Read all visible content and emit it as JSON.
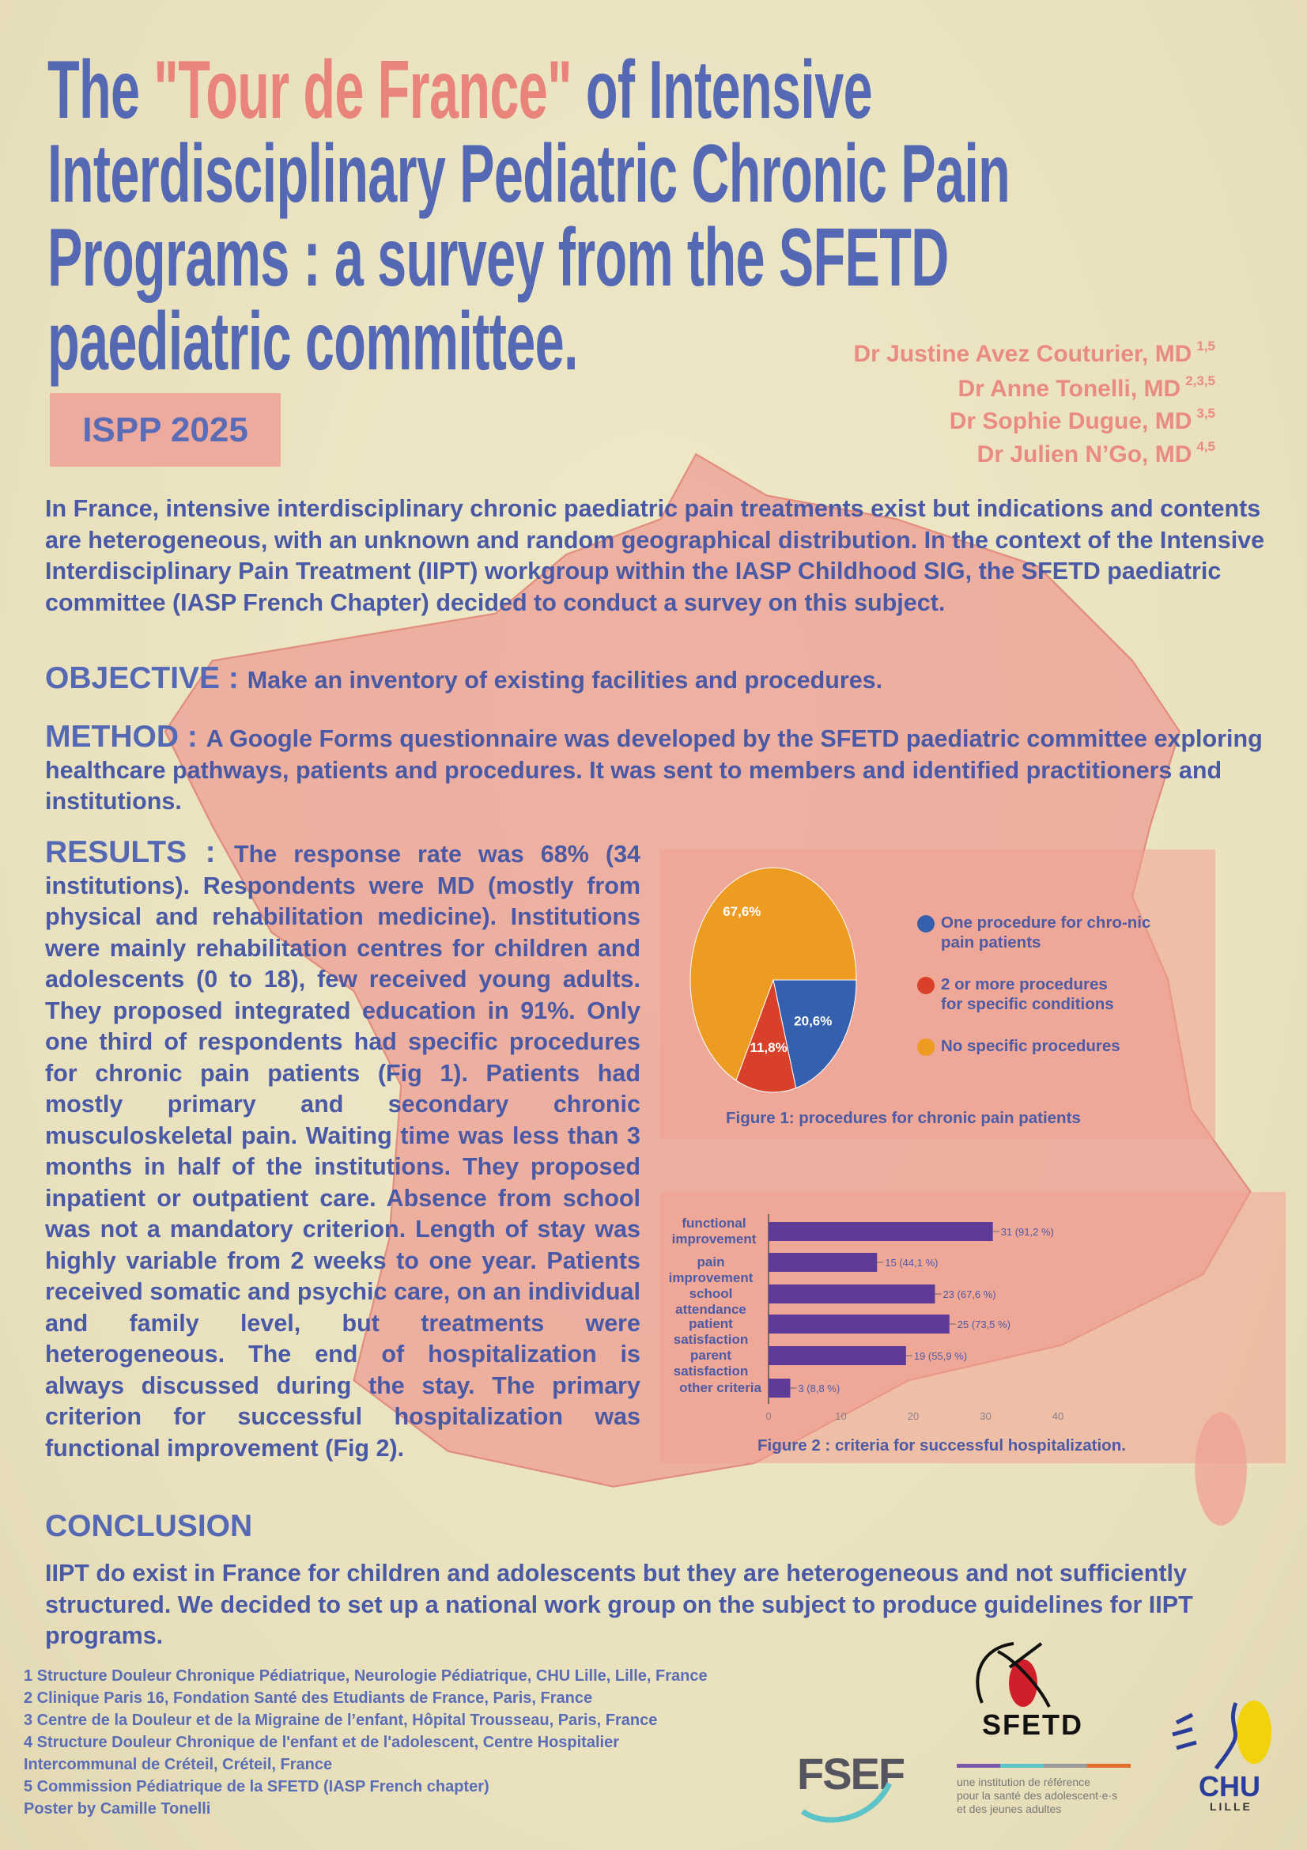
{
  "colors": {
    "title_blue": "#5468b4",
    "title_salmon": "#e9847a",
    "map_pink": "#eea79a",
    "pie_orange": "#ee9b22",
    "pie_blue": "#3560ad",
    "pie_red": "#d8402a",
    "bar_purple": "#5e3b96"
  },
  "title": {
    "line1_a": "The ",
    "line1_b": "\"Tour de France\"",
    "line1_c": " of Intensive",
    "line2": "Interdisciplinary Pediatric Chronic Pain",
    "line3": "Programs : a survey from the SFETD",
    "line4": "paediatric committee."
  },
  "badge": "ISPP 2025",
  "authors": [
    {
      "name": "Dr Justine Avez Couturier, MD",
      "aff": "1,5"
    },
    {
      "name": "Dr Anne Tonelli, MD",
      "aff": "2,3,5"
    },
    {
      "name": "Dr Sophie Dugue, MD",
      "aff": "3,5"
    },
    {
      "name": "Dr Julien N’Go, MD",
      "aff": "4,5"
    }
  ],
  "intro": "In France, intensive interdisciplinary chronic paediatric pain treatments exist but indications and contents are heterogeneous, with an unknown and random geographical distribution. In the context of the Intensive Interdisciplinary Pain Treatment (IIPT) workgroup within the IASP Childhood SIG, the SFETD paediatric committee (IASP French Chapter) decided to conduct a survey on this subject.",
  "objective": {
    "heading": "OBJECTIVE : ",
    "text": "Make an inventory of existing facilities and procedures."
  },
  "method": {
    "heading": "METHOD : ",
    "text": "A Google Forms questionnaire was developed by the SFETD paediatric committee exploring healthcare pathways, patients and procedures. It was sent to members and identified practitioners and institutions."
  },
  "results": {
    "heading": "RESULTS : ",
    "text": "The response rate was 68% (34 institutions). Respondents were MD (mostly from physical and rehabilitation medicine). Institutions were mainly rehabilitation centres for children and adolescents (0 to 18), few received young adults. They proposed integrated education in 91%. Only one third of respondents had specific procedures for chronic pain patients (Fig 1). Patients had mostly primary and secondary chronic musculoskeletal pain. Waiting time was less than 3 months in half of the institutions. They proposed inpatient or outpatient care. Absence from school was not a mandatory criterion. Length of stay was highly variable from 2 weeks to one year. Patients received somatic and psychic care, on an individual and family level, but treatments were heterogeneous. The end of hospitalization is always discussed during the stay. The primary criterion for successful hospitalization was functional improvement (Fig 2)."
  },
  "conclusion": {
    "heading": "CONCLUSION",
    "text": "IIPT do exist in France for children and adolescents but they are heterogeneous and not sufficiently structured. We decided to set up a national work group on the subject to produce guidelines for IIPT programs."
  },
  "chart_data": [
    {
      "type": "pie",
      "title": "Figure 1: procedures for chronic pain patients",
      "slices": [
        {
          "label": "One procedure for chronic pain patients",
          "legend_text": "One procedure for chro-nic pain patients",
          "value": 20.6,
          "value_label": "20,6%",
          "color": "#3560ad"
        },
        {
          "label": "2 or more procedures for specific conditions",
          "legend_text": "2 or more procedures for specific conditions",
          "value": 11.8,
          "value_label": "11,8%",
          "color": "#d8402a"
        },
        {
          "label": "No specific procedures",
          "legend_text": "No specific procedures",
          "value": 67.6,
          "value_label": "67,6%",
          "color": "#ee9b22"
        }
      ],
      "legend": "right"
    },
    {
      "type": "bar",
      "orientation": "horizontal",
      "title": "Figure 2 : criteria for successful hospitalization.",
      "categories": [
        "functional improvement",
        "pain improvement",
        "school attendance",
        "patient satisfaction",
        "parent satisfaction",
        "other criteria"
      ],
      "values": [
        31,
        15,
        23,
        25,
        19,
        3
      ],
      "data_labels": [
        "31 (91,2 %)",
        "15 (44,1 %)",
        "23 (67,6 %)",
        "25 (73,5 %)",
        "19 (55,9 %)",
        "3 (8,8 %)"
      ],
      "xlim": [
        0,
        40
      ],
      "xticks": [
        "0",
        "10",
        "20",
        "30",
        "40"
      ],
      "color": "#5e3b96"
    }
  ],
  "footnotes": [
    "1 Structure Douleur Chronique Pédiatrique, Neurologie Pédiatrique, CHU Lille, Lille, France",
    "2 Clinique Paris 16, Fondation Santé des Etudiants de France, Paris, France",
    "3 Centre de la Douleur et de la Migraine de l’enfant, Hôpital Trousseau, Paris, France",
    "4 Structure Douleur Chronique de l'enfant et de l'adolescent, Centre Hospitalier",
    "Intercommunal de Créteil, Créteil, France",
    "5 Commission Pédiatrique de la SFETD (IASP French chapter)",
    "Poster by Camille Tonelli"
  ],
  "logos": {
    "sfetd": "SFETD",
    "fsef": "FSEF",
    "fsef_tagline": [
      "une institution de référence",
      "pour la santé des adolescent·e·s",
      "et des jeunes adultes"
    ],
    "chu": "CHU",
    "chu_city": "LILLE"
  }
}
